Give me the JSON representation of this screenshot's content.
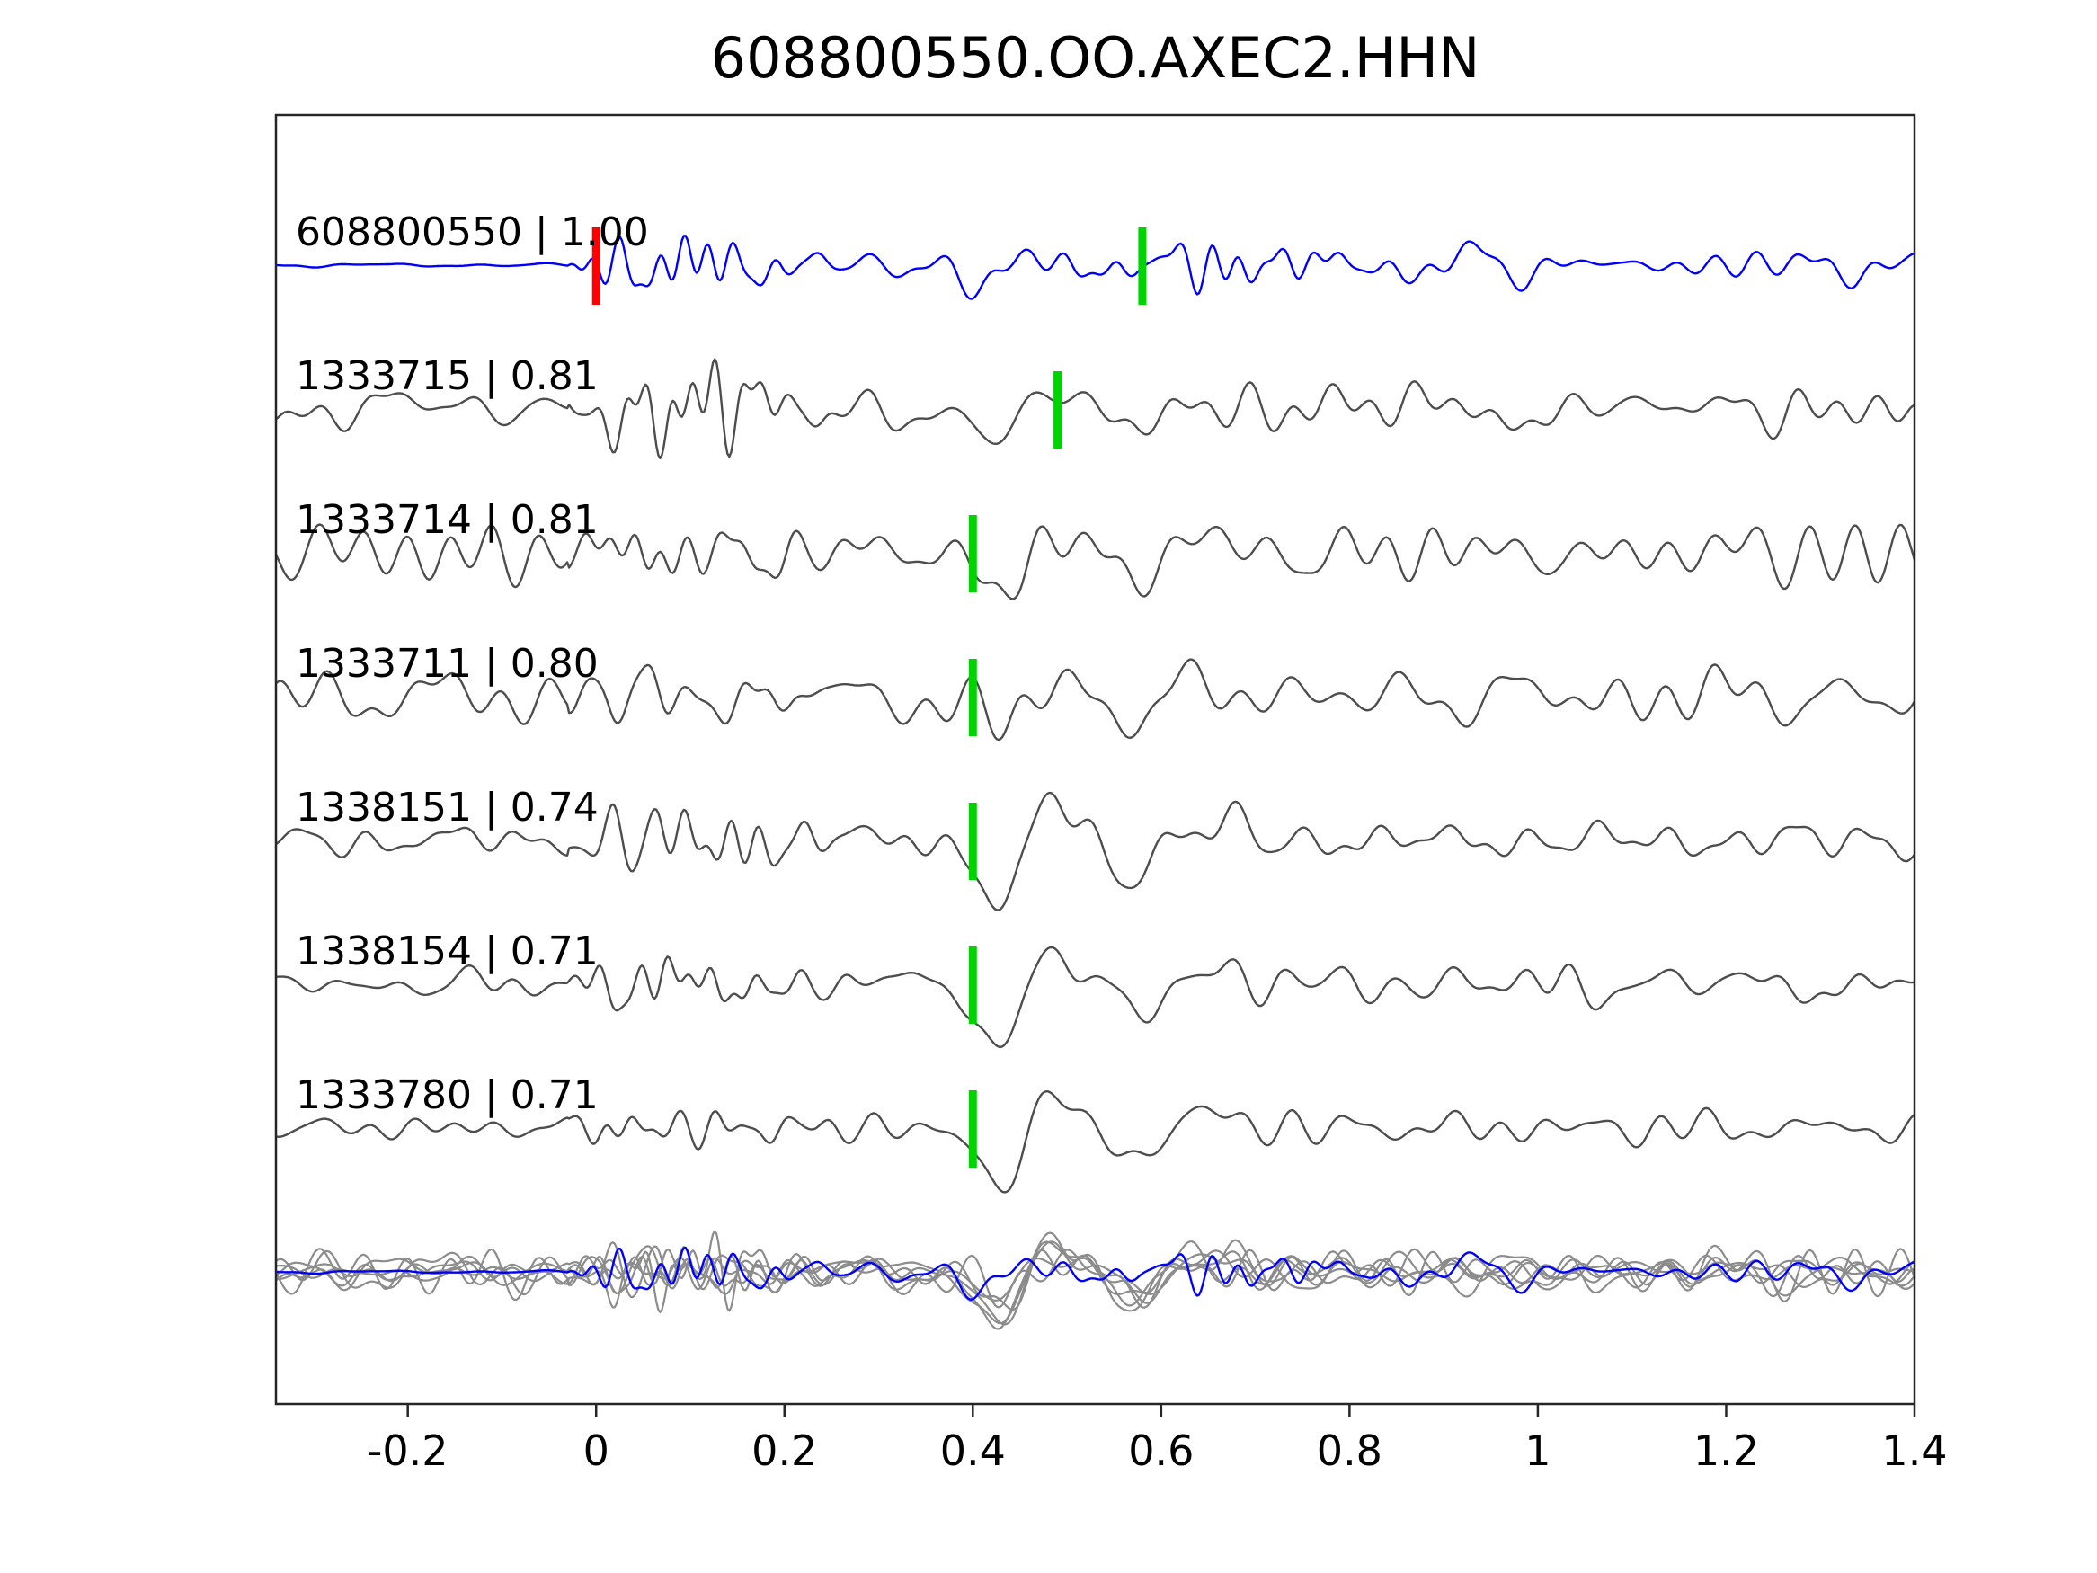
{
  "title": "608800550.OO.AXEC2.HHN",
  "chart_data": {
    "type": "line",
    "title": "608800550.OO.AXEC2.HHN",
    "xlabel": "",
    "ylabel": "",
    "xlim": [
      -0.34,
      1.4
    ],
    "x_ticks": [
      -0.2,
      0,
      0.2,
      0.4,
      0.6,
      0.8,
      1.0,
      1.2,
      1.4
    ],
    "x_tick_labels": [
      "-0.2",
      "0",
      "0.2",
      "0.4",
      "0.6",
      "0.8",
      "1",
      "1.2",
      "1.4"
    ],
    "grid": false,
    "legend": null,
    "colors": {
      "template_trace": "#0000ff",
      "detection_trace": "#4d4d4d",
      "overlay_detection_trace": "#8c8c8c",
      "pick_marker": "#00d400",
      "origin_marker": "#ff0000",
      "axis": "#262626",
      "text": "#000000"
    },
    "traces": [
      {
        "label": "608800550 | 1.00",
        "id": "608800550",
        "correlation": 1.0,
        "role": "template",
        "color": "#0000ff",
        "markers": [
          {
            "x": 0.0,
            "color": "#ff0000"
          },
          {
            "x": 0.58,
            "color": "#00d400"
          }
        ]
      },
      {
        "label": "1333715 | 0.81",
        "id": "1333715",
        "correlation": 0.81,
        "role": "detection",
        "color": "#4d4d4d",
        "markers": [
          {
            "x": 0.49,
            "color": "#00d400"
          }
        ]
      },
      {
        "label": "1333714 | 0.81",
        "id": "1333714",
        "correlation": 0.81,
        "role": "detection",
        "color": "#4d4d4d",
        "markers": [
          {
            "x": 0.4,
            "color": "#00d400"
          }
        ]
      },
      {
        "label": "1333711 | 0.80",
        "id": "1333711",
        "correlation": 0.8,
        "role": "detection",
        "color": "#4d4d4d",
        "markers": [
          {
            "x": 0.4,
            "color": "#00d400"
          }
        ]
      },
      {
        "label": "1338151 | 0.74",
        "id": "1338151",
        "correlation": 0.74,
        "role": "detection",
        "color": "#4d4d4d",
        "markers": [
          {
            "x": 0.4,
            "color": "#00d400"
          }
        ]
      },
      {
        "label": "1338154 | 0.71",
        "id": "1338154",
        "correlation": 0.71,
        "role": "detection",
        "color": "#4d4d4d",
        "markers": [
          {
            "x": 0.4,
            "color": "#00d400"
          }
        ]
      },
      {
        "label": "1333780 | 0.71",
        "id": "1333780",
        "correlation": 0.71,
        "role": "detection",
        "color": "#4d4d4d",
        "markers": [
          {
            "x": 0.4,
            "color": "#00d400"
          }
        ]
      }
    ],
    "overlay_row": {
      "description": "All detection waveforms (gray) overlaid with the template waveform (blue)",
      "detection_color": "#8c8c8c",
      "template_color": "#0000ff"
    }
  }
}
